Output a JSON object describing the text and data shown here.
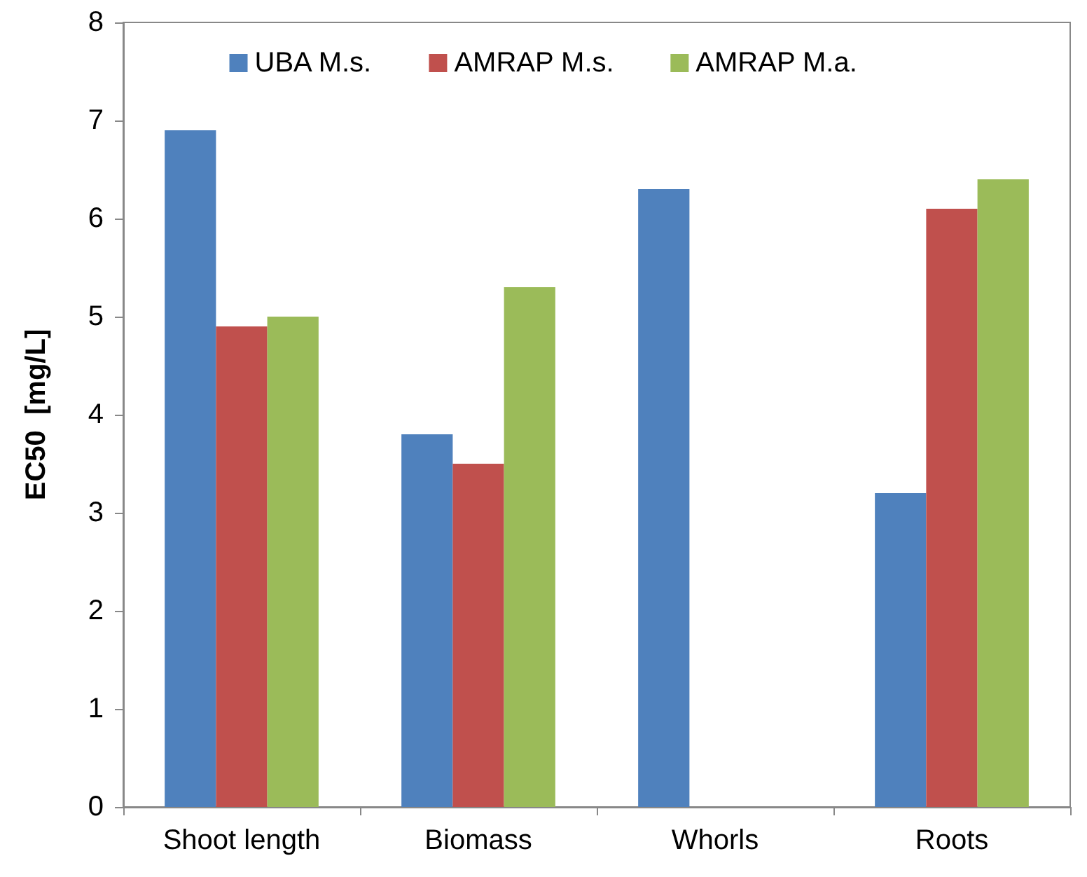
{
  "chart_data": {
    "type": "bar",
    "ylabel": "EC50  [mg/L]",
    "categories": [
      "Shoot length",
      "Biomass",
      "Whorls",
      "Roots"
    ],
    "series": [
      {
        "name": "UBA M.s.",
        "color": "#4f81bd",
        "values": [
          6.9,
          3.8,
          6.3,
          3.2
        ]
      },
      {
        "name": "AMRAP M.s.",
        "color": "#c0504d",
        "values": [
          4.9,
          3.5,
          null,
          6.1
        ]
      },
      {
        "name": "AMRAP M.a.",
        "color": "#9bbb59",
        "values": [
          5.0,
          5.3,
          null,
          6.4
        ]
      }
    ],
    "ylim": [
      0,
      8
    ],
    "yticks": [
      0,
      1,
      2,
      3,
      4,
      5,
      6,
      7,
      8
    ],
    "grid": false,
    "legend": "top"
  }
}
